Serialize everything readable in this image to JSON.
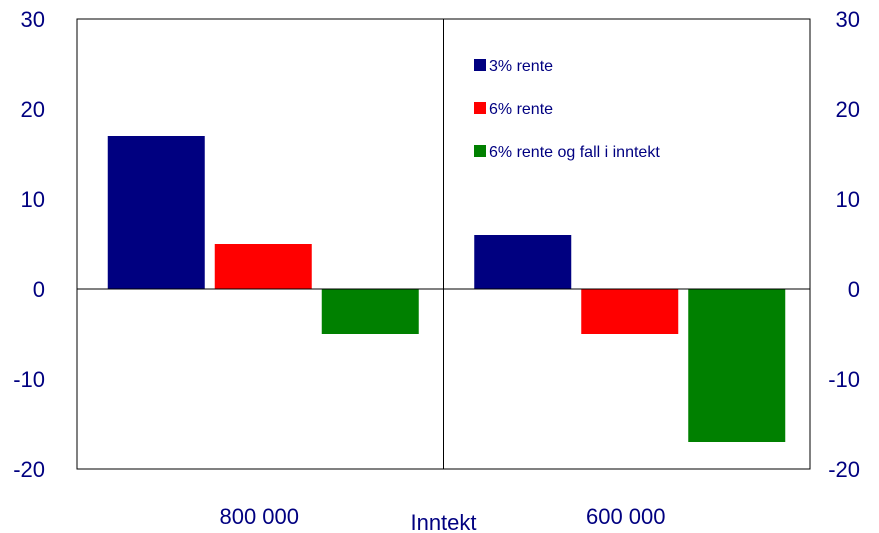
{
  "chart_data": {
    "type": "bar",
    "categories": [
      "800 000",
      "600 000"
    ],
    "xlabel": "Inntekt",
    "ylabel": "",
    "ylim": [
      -20,
      30
    ],
    "yticks": [
      30,
      20,
      10,
      0,
      -10,
      -20
    ],
    "grid": false,
    "legend_position": "top-right",
    "series": [
      {
        "name": "3% rente",
        "color": "#000080",
        "values": [
          17,
          6
        ]
      },
      {
        "name": "6% rente",
        "color": "#ff0000",
        "values": [
          5,
          -5
        ]
      },
      {
        "name": "6% rente og fall i inntekt",
        "color": "#008000",
        "values": [
          -5,
          -17
        ]
      }
    ]
  }
}
